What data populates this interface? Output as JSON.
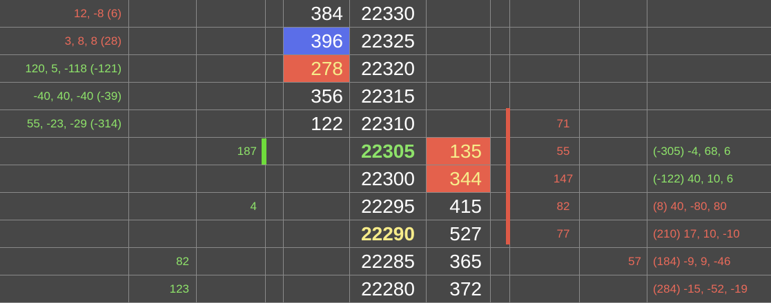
{
  "colors": {
    "background": "#474747",
    "grid": "#8a8a8a",
    "text_white": "#ffffff",
    "text_green": "#8ee26a",
    "text_red": "#e86a5a",
    "text_yellow": "#f7ec8a",
    "highlight_blue": "#5b6ee8",
    "highlight_red": "#e4614c",
    "bar_green": "#6fdc3c",
    "bar_red": "#de5a47"
  },
  "rows": [
    {
      "left_stats": "12, -8 (6)",
      "left_stats_color": "red",
      "bid_delta": "",
      "bid_small": "",
      "bid_volume": "384",
      "bid_highlight": "",
      "price": "22330",
      "price_style": "",
      "ask_volume": "",
      "ask_highlight": "",
      "ask_delta": "",
      "ask_small": "",
      "right_stats": "",
      "right_stats_color": ""
    },
    {
      "left_stats": "3, 8, 8 (28)",
      "left_stats_color": "red",
      "bid_delta": "",
      "bid_small": "",
      "bid_volume": "396",
      "bid_highlight": "blue",
      "price": "22325",
      "price_style": "",
      "ask_volume": "",
      "ask_highlight": "",
      "ask_delta": "",
      "ask_small": "",
      "right_stats": "",
      "right_stats_color": ""
    },
    {
      "left_stats": "120, 5, -118 (-121)",
      "left_stats_color": "green",
      "bid_delta": "",
      "bid_small": "",
      "bid_volume": "278",
      "bid_highlight": "red",
      "price": "22320",
      "price_style": "",
      "ask_volume": "",
      "ask_highlight": "",
      "ask_delta": "",
      "ask_small": "",
      "right_stats": "",
      "right_stats_color": ""
    },
    {
      "left_stats": "-40, 40, -40 (-39)",
      "left_stats_color": "green",
      "bid_delta": "",
      "bid_small": "",
      "bid_volume": "356",
      "bid_highlight": "",
      "price": "22315",
      "price_style": "",
      "ask_volume": "",
      "ask_highlight": "",
      "ask_delta": "",
      "ask_small": "",
      "right_stats": "",
      "right_stats_color": ""
    },
    {
      "left_stats": "55, -23, -29 (-314)",
      "left_stats_color": "green",
      "bid_delta": "",
      "bid_small": "",
      "bid_volume": "122",
      "bid_highlight": "",
      "price": "22310",
      "price_style": "",
      "ask_volume": "",
      "ask_highlight": "",
      "ask_delta": "71",
      "ask_small": "",
      "right_stats": "",
      "right_stats_color": ""
    },
    {
      "left_stats": "",
      "left_stats_color": "",
      "bid_delta": "187",
      "bid_small": "",
      "bid_volume": "",
      "bid_highlight": "",
      "price": "22305",
      "price_style": "green-bold",
      "ask_volume": "135",
      "ask_highlight": "red",
      "ask_delta": "55",
      "ask_small": "",
      "right_stats": "(-305) -4, 68, 6",
      "right_stats_color": "green"
    },
    {
      "left_stats": "",
      "left_stats_color": "",
      "bid_delta": "",
      "bid_small": "",
      "bid_volume": "",
      "bid_highlight": "",
      "price": "22300",
      "price_style": "",
      "ask_volume": "344",
      "ask_highlight": "red",
      "ask_delta": "147",
      "ask_small": "",
      "right_stats": "(-122) 40, 10, 6",
      "right_stats_color": "green"
    },
    {
      "left_stats": "",
      "left_stats_color": "",
      "bid_delta": "4",
      "bid_small": "",
      "bid_volume": "",
      "bid_highlight": "",
      "price": "22295",
      "price_style": "",
      "ask_volume": "415",
      "ask_highlight": "",
      "ask_delta": "82",
      "ask_small": "",
      "right_stats": "(8) 40, -80, 80",
      "right_stats_color": "red"
    },
    {
      "left_stats": "",
      "left_stats_color": "",
      "bid_delta": "",
      "bid_small": "",
      "bid_volume": "",
      "bid_highlight": "",
      "price": "22290",
      "price_style": "yellow-bold",
      "ask_volume": "527",
      "ask_highlight": "",
      "ask_delta": "77",
      "ask_small": "",
      "right_stats": "(210) 17, 10, -10",
      "right_stats_color": "red"
    },
    {
      "left_stats": "",
      "left_stats_color": "",
      "bid_delta": "",
      "bid_small": "82",
      "bid_volume": "",
      "bid_highlight": "",
      "price": "22285",
      "price_style": "",
      "ask_volume": "365",
      "ask_highlight": "",
      "ask_delta": "",
      "ask_small": "57",
      "right_stats": "(184) -9, 9, -46",
      "right_stats_color": "red"
    },
    {
      "left_stats": "",
      "left_stats_color": "",
      "bid_delta": "",
      "bid_small": "123",
      "bid_volume": "",
      "bid_highlight": "",
      "price": "22280",
      "price_style": "",
      "ask_volume": "372",
      "ask_highlight": "",
      "ask_delta": "",
      "ask_small": "",
      "right_stats": "(284) -15, -52, -19",
      "right_stats_color": "red"
    }
  ],
  "bid_bar": {
    "color": "green",
    "rows": [
      5
    ]
  },
  "ask_bar": {
    "color": "red",
    "rows": [
      4,
      5,
      6,
      7,
      8
    ]
  }
}
